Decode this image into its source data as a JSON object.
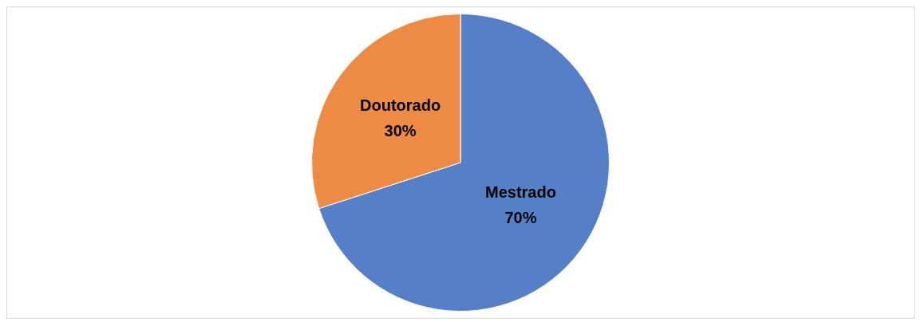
{
  "chart_data": {
    "type": "pie",
    "categories": [
      "Mestrado",
      "Doutorado"
    ],
    "values": [
      70,
      30
    ],
    "colors": [
      "#5580c8",
      "#ed8b45"
    ],
    "value_labels": [
      "70%",
      "30%"
    ],
    "legend": false
  }
}
